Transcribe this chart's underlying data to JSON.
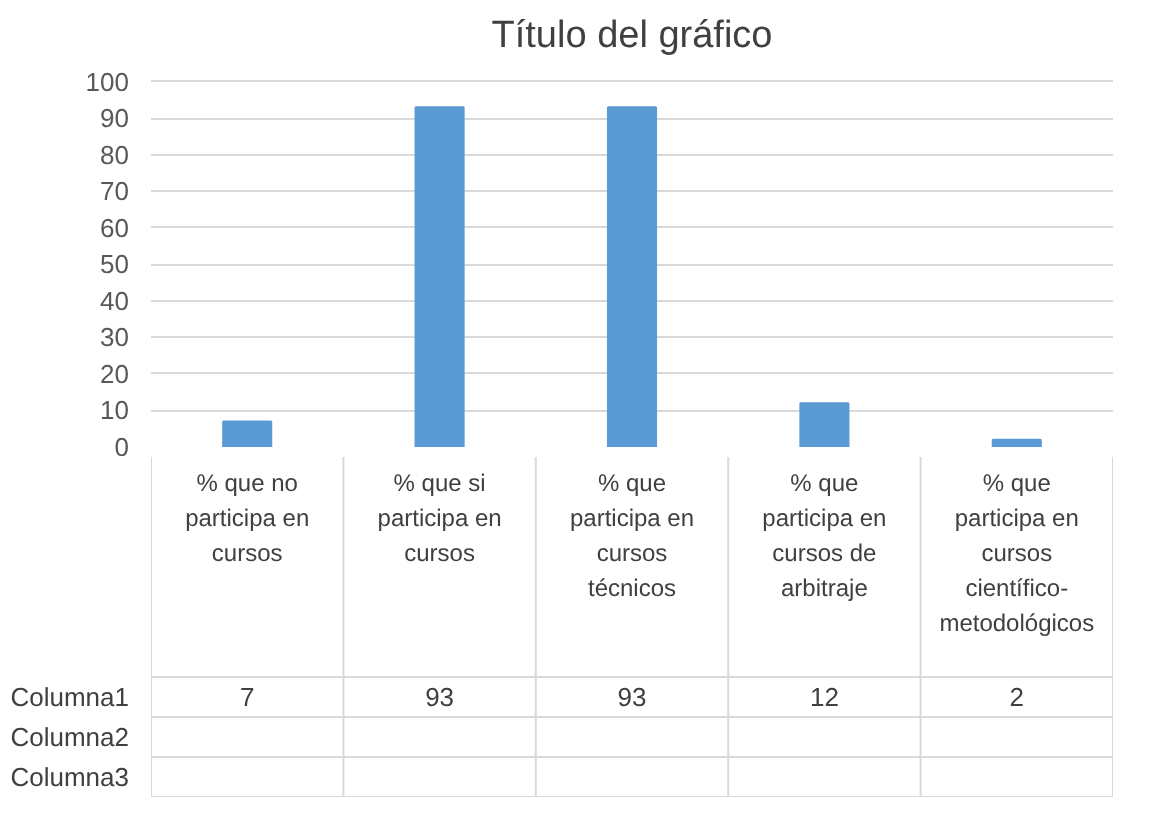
{
  "chart_data": {
    "type": "bar",
    "title": "Título del gráfico",
    "categories": [
      "% que no participa en cursos",
      "% que si participa en cursos",
      "% que participa en cursos técnicos",
      "% que participa en cursos de arbitraje",
      "% que participa en cursos científico-metodológicos"
    ],
    "series": [
      {
        "name": "Columna1",
        "color": "#5b9bd5",
        "values": [
          7,
          93,
          93,
          12,
          2
        ]
      },
      {
        "name": "Columna2",
        "values": [
          null,
          null,
          null,
          null,
          null
        ]
      },
      {
        "name": "Columna3",
        "values": [
          null,
          null,
          null,
          null,
          null
        ]
      }
    ],
    "ylim": [
      0,
      100
    ],
    "yticks": [
      0,
      10,
      20,
      30,
      40,
      50,
      60,
      70,
      80,
      90,
      100
    ],
    "grid": "y",
    "data_labels": true
  }
}
